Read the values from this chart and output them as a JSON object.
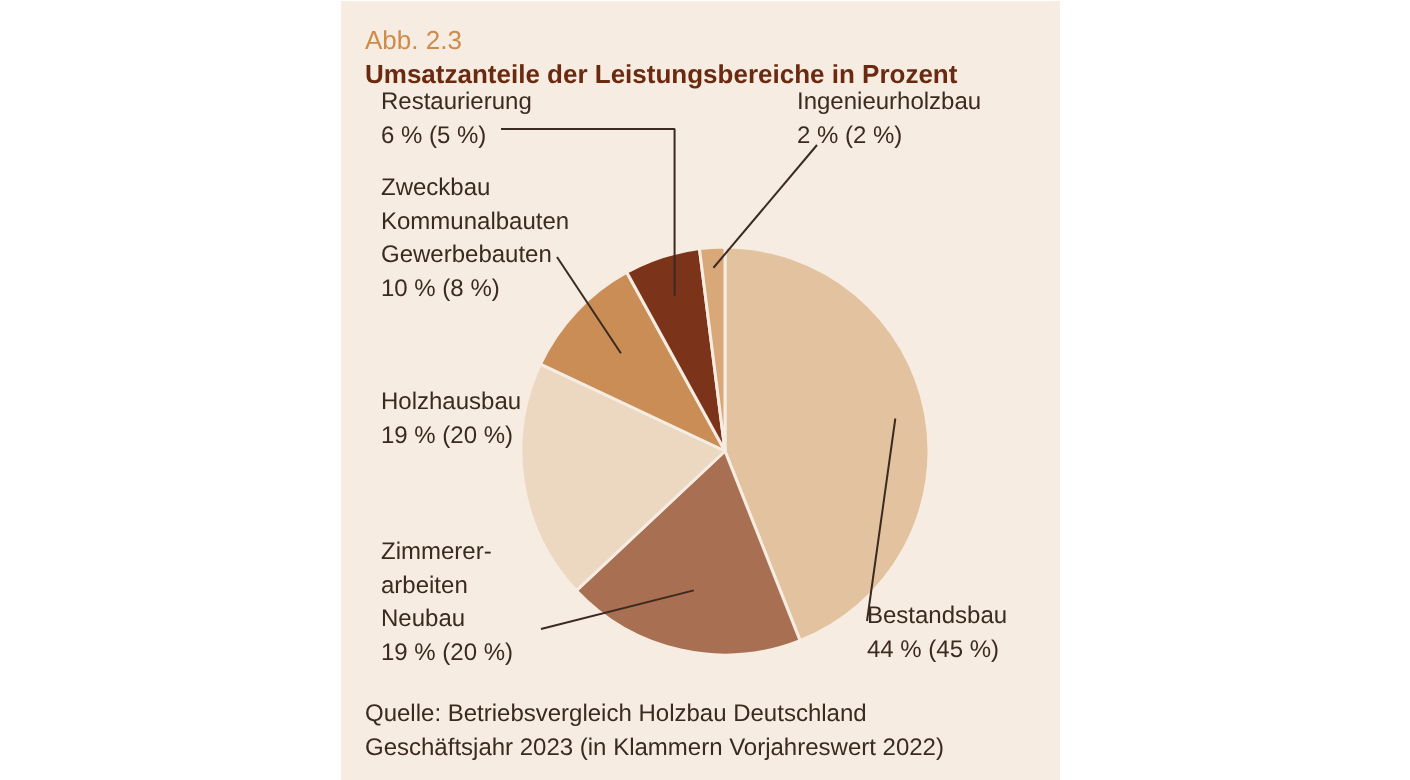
{
  "chart_data": {
    "type": "pie",
    "title": "Abb. 2.3",
    "subtitle": "Umsatzanteile der Leistungsbereiche in Prozent",
    "categories": [
      "Bestandsbau",
      "Zimmerer-\narbeiten\nNeubau",
      "Holzhausbau",
      "Zweckbau\nKommunalbauten\nGewerbebauten",
      "Restaurierung",
      "Ingenieurholzbau"
    ],
    "values": [
      44,
      19,
      19,
      10,
      6,
      2
    ],
    "value_labels": [
      "44 % (45 %)",
      "19 % (20 %)",
      "19 % (20 %)",
      "10 % (8 %)",
      "6 % (5 %)",
      "2 % (2 %)"
    ],
    "colors": [
      "#e3c29f",
      "#a86f52",
      "#ecd7c0",
      "#c98d55",
      "#7b3419",
      "#d9a878"
    ],
    "annotations": [
      "Quelle: Betriebsvergleich Holzbau Deutschland\nGeschäftsjahr 2023 (in Klammern Vorjahreswert 2022)"
    ]
  }
}
